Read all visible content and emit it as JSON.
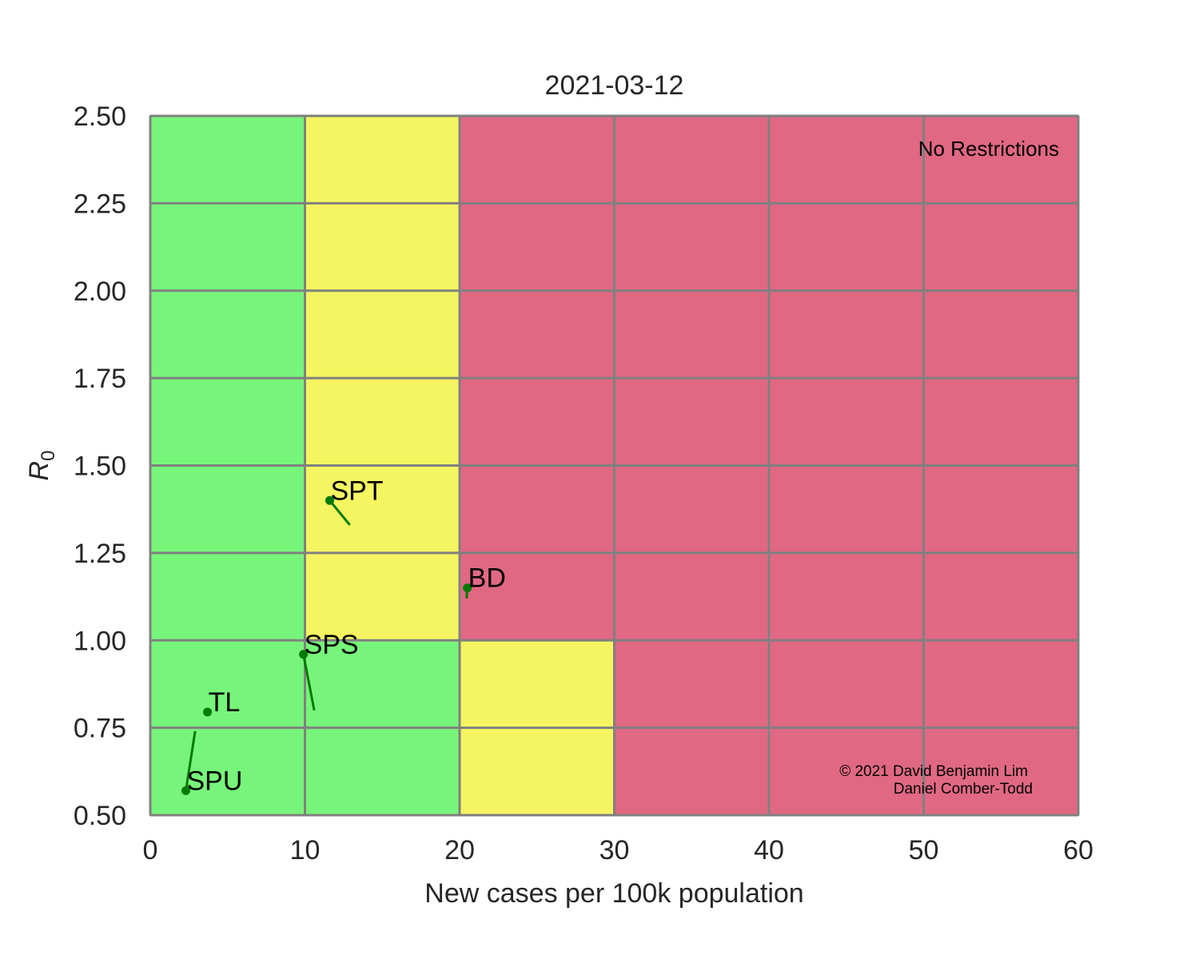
{
  "chart_data": {
    "type": "scatter",
    "title": "2021-03-12",
    "xlabel": "New cases per 100k population",
    "ylabel_base": "R",
    "ylabel_sub": "0",
    "xlim": [
      0,
      60
    ],
    "ylim": [
      0.5,
      2.5
    ],
    "x_ticks": [
      0,
      10,
      20,
      30,
      40,
      50,
      60
    ],
    "y_ticks": [
      0.5,
      0.75,
      1.0,
      1.25,
      1.5,
      1.75,
      2.0,
      2.25,
      2.5
    ],
    "x_tick_labels": [
      "0",
      "10",
      "20",
      "30",
      "40",
      "50",
      "60"
    ],
    "y_tick_labels": [
      "0.50",
      "0.75",
      "1.00",
      "1.25",
      "1.50",
      "1.75",
      "2.00",
      "2.25",
      "2.50"
    ],
    "grid": true,
    "zone_colors": {
      "green": "#77f57a",
      "yellow": "#f5f561",
      "red": "#e06883"
    },
    "grid_color": "#808080",
    "marker_color": "#007a00",
    "zones": [
      {
        "x0": 0,
        "x1": 10,
        "y0": 0.5,
        "y1": 2.5,
        "zone": "green"
      },
      {
        "x0": 10,
        "x1": 20,
        "y0": 0.5,
        "y1": 1.0,
        "zone": "green"
      },
      {
        "x0": 10,
        "x1": 20,
        "y0": 1.0,
        "y1": 2.5,
        "zone": "yellow"
      },
      {
        "x0": 20,
        "x1": 30,
        "y0": 0.5,
        "y1": 1.0,
        "zone": "yellow"
      },
      {
        "x0": 20,
        "x1": 30,
        "y0": 1.0,
        "y1": 2.5,
        "zone": "red"
      },
      {
        "x0": 30,
        "x1": 60,
        "y0": 0.5,
        "y1": 2.5,
        "zone": "red"
      }
    ],
    "points": [
      {
        "label": "SPT",
        "x": 11.6,
        "y": 1.4,
        "trail_x": 12.9,
        "trail_y": 1.33
      },
      {
        "label": "BD",
        "x": 20.5,
        "y": 1.15,
        "trail_x": 20.45,
        "trail_y": 1.12
      },
      {
        "label": "SPS",
        "x": 9.9,
        "y": 0.96,
        "trail_x": 10.6,
        "trail_y": 0.8
      },
      {
        "label": "TL",
        "x": 3.7,
        "y": 0.795,
        "trail_x": null,
        "trail_y": null
      },
      {
        "label": "SPU",
        "x": 2.3,
        "y": 0.57,
        "trail_x": 2.9,
        "trail_y": 0.74
      }
    ],
    "annotation": "No Restrictions",
    "credit_lines": [
      "© 2021 David Benjamin Lim",
      "Daniel Comber-Todd"
    ]
  }
}
